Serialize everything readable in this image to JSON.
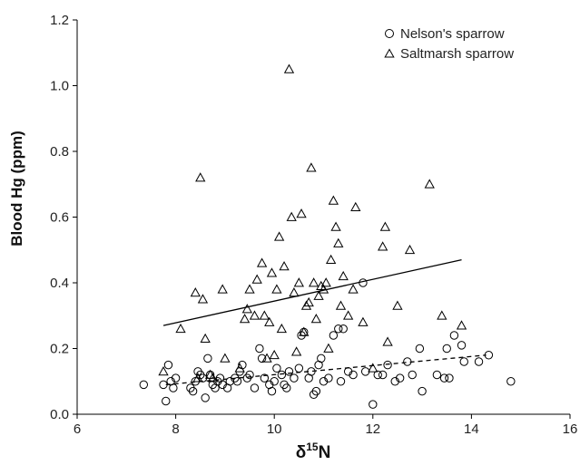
{
  "chart_data": {
    "type": "scatter",
    "xlabel": "δ",
    "xlabel_sup": "15",
    "xlabel_suffix": "N",
    "ylabel": "Blood Hg (ppm)",
    "xlim": [
      6,
      16
    ],
    "ylim": [
      0,
      1.2
    ],
    "xticks": [
      6,
      8,
      10,
      12,
      14,
      16
    ],
    "yticks": [
      0.0,
      0.2,
      0.4,
      0.6,
      0.8,
      1.0,
      1.2
    ],
    "xtick_labels": [
      "6",
      "8",
      "10",
      "12",
      "14",
      "16"
    ],
    "ytick_labels": [
      "0.0",
      "0.2",
      "0.4",
      "0.6",
      "0.8",
      "1.0",
      "1.2"
    ],
    "grid": false,
    "legend_position": "top-right",
    "series": [
      {
        "name": "Nelson's sparrow",
        "marker": "circle",
        "points": [
          [
            7.35,
            0.09
          ],
          [
            7.75,
            0.09
          ],
          [
            7.8,
            0.04
          ],
          [
            7.85,
            0.15
          ],
          [
            7.9,
            0.1
          ],
          [
            7.95,
            0.08
          ],
          [
            8.0,
            0.11
          ],
          [
            8.3,
            0.08
          ],
          [
            8.35,
            0.07
          ],
          [
            8.4,
            0.1
          ],
          [
            8.45,
            0.13
          ],
          [
            8.5,
            0.12
          ],
          [
            8.55,
            0.11
          ],
          [
            8.6,
            0.05
          ],
          [
            8.65,
            0.17
          ],
          [
            8.7,
            0.12
          ],
          [
            8.75,
            0.09
          ],
          [
            8.8,
            0.08
          ],
          [
            8.85,
            0.1
          ],
          [
            8.9,
            0.11
          ],
          [
            8.95,
            0.09
          ],
          [
            9.05,
            0.08
          ],
          [
            9.1,
            0.1
          ],
          [
            9.2,
            0.11
          ],
          [
            9.25,
            0.1
          ],
          [
            9.3,
            0.13
          ],
          [
            9.35,
            0.15
          ],
          [
            9.45,
            0.11
          ],
          [
            9.5,
            0.12
          ],
          [
            9.6,
            0.08
          ],
          [
            9.7,
            0.2
          ],
          [
            9.75,
            0.17
          ],
          [
            9.8,
            0.11
          ],
          [
            9.9,
            0.09
          ],
          [
            9.95,
            0.07
          ],
          [
            10.0,
            0.1
          ],
          [
            10.05,
            0.14
          ],
          [
            10.15,
            0.12
          ],
          [
            10.2,
            0.09
          ],
          [
            10.25,
            0.08
          ],
          [
            10.3,
            0.13
          ],
          [
            10.4,
            0.11
          ],
          [
            10.5,
            0.14
          ],
          [
            10.55,
            0.24
          ],
          [
            10.6,
            0.25
          ],
          [
            10.7,
            0.11
          ],
          [
            10.75,
            0.13
          ],
          [
            10.8,
            0.06
          ],
          [
            10.85,
            0.07
          ],
          [
            10.9,
            0.15
          ],
          [
            10.95,
            0.17
          ],
          [
            11.0,
            0.1
          ],
          [
            11.1,
            0.11
          ],
          [
            11.2,
            0.24
          ],
          [
            11.3,
            0.26
          ],
          [
            11.35,
            0.1
          ],
          [
            11.4,
            0.26
          ],
          [
            11.5,
            0.13
          ],
          [
            11.6,
            0.12
          ],
          [
            11.8,
            0.4
          ],
          [
            11.85,
            0.13
          ],
          [
            12.0,
            0.03
          ],
          [
            12.1,
            0.12
          ],
          [
            12.2,
            0.12
          ],
          [
            12.3,
            0.15
          ],
          [
            12.45,
            0.1
          ],
          [
            12.55,
            0.11
          ],
          [
            12.7,
            0.16
          ],
          [
            12.8,
            0.12
          ],
          [
            12.95,
            0.2
          ],
          [
            13.0,
            0.07
          ],
          [
            13.3,
            0.12
          ],
          [
            13.45,
            0.11
          ],
          [
            13.5,
            0.2
          ],
          [
            13.55,
            0.11
          ],
          [
            13.65,
            0.24
          ],
          [
            13.8,
            0.21
          ],
          [
            13.85,
            0.16
          ],
          [
            14.15,
            0.16
          ],
          [
            14.35,
            0.18
          ],
          [
            14.8,
            0.1
          ]
        ],
        "trend": {
          "style": "dashed",
          "x": [
            7.8,
            14.3
          ],
          "y": [
            0.09,
            0.18
          ]
        }
      },
      {
        "name": "Saltmarsh sparrow",
        "marker": "triangle",
        "points": [
          [
            7.75,
            0.13
          ],
          [
            8.1,
            0.26
          ],
          [
            8.4,
            0.37
          ],
          [
            8.45,
            0.11
          ],
          [
            8.5,
            0.72
          ],
          [
            8.55,
            0.35
          ],
          [
            8.6,
            0.23
          ],
          [
            8.7,
            0.12
          ],
          [
            8.75,
            0.11
          ],
          [
            8.95,
            0.38
          ],
          [
            9.0,
            0.17
          ],
          [
            9.3,
            0.14
          ],
          [
            9.4,
            0.29
          ],
          [
            9.45,
            0.32
          ],
          [
            9.5,
            0.38
          ],
          [
            9.6,
            0.3
          ],
          [
            9.65,
            0.41
          ],
          [
            9.75,
            0.46
          ],
          [
            9.8,
            0.3
          ],
          [
            9.85,
            0.17
          ],
          [
            9.9,
            0.28
          ],
          [
            9.95,
            0.43
          ],
          [
            10.0,
            0.18
          ],
          [
            10.05,
            0.38
          ],
          [
            10.1,
            0.54
          ],
          [
            10.15,
            0.26
          ],
          [
            10.2,
            0.45
          ],
          [
            10.3,
            1.05
          ],
          [
            10.35,
            0.6
          ],
          [
            10.4,
            0.37
          ],
          [
            10.45,
            0.19
          ],
          [
            10.5,
            0.4
          ],
          [
            10.55,
            0.61
          ],
          [
            10.6,
            0.25
          ],
          [
            10.65,
            0.33
          ],
          [
            10.7,
            0.34
          ],
          [
            10.75,
            0.75
          ],
          [
            10.8,
            0.4
          ],
          [
            10.85,
            0.29
          ],
          [
            10.9,
            0.36
          ],
          [
            10.95,
            0.39
          ],
          [
            11.0,
            0.38
          ],
          [
            11.05,
            0.4
          ],
          [
            11.1,
            0.2
          ],
          [
            11.15,
            0.47
          ],
          [
            11.2,
            0.65
          ],
          [
            11.25,
            0.57
          ],
          [
            11.3,
            0.52
          ],
          [
            11.35,
            0.33
          ],
          [
            11.4,
            0.42
          ],
          [
            11.5,
            0.3
          ],
          [
            11.6,
            0.38
          ],
          [
            11.65,
            0.63
          ],
          [
            11.8,
            0.28
          ],
          [
            12.0,
            0.14
          ],
          [
            12.2,
            0.51
          ],
          [
            12.25,
            0.57
          ],
          [
            12.3,
            0.22
          ],
          [
            12.5,
            0.33
          ],
          [
            12.75,
            0.5
          ],
          [
            13.15,
            0.7
          ],
          [
            13.4,
            0.3
          ],
          [
            13.8,
            0.27
          ]
        ],
        "trend": {
          "style": "solid",
          "x": [
            7.75,
            13.8
          ],
          "y": [
            0.27,
            0.47
          ]
        }
      }
    ]
  }
}
